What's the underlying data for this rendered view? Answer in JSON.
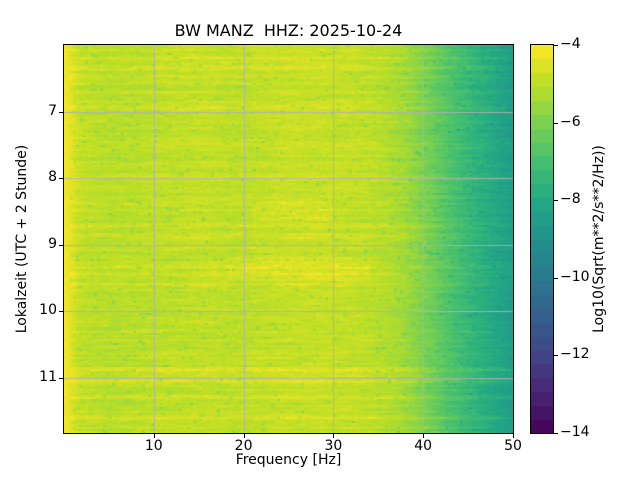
{
  "title": "BW MANZ  HHZ: 2025-10-24",
  "xlabel": "Frequency [Hz]",
  "ylabel": "Lokalzeit (UTC + 2 Stunde)",
  "colorbar_label": "Log10(Sqrt(m**2/s**2/Hz))",
  "chart_data": {
    "type": "heatmap",
    "subtype": "spectrogram",
    "title": "BW MANZ  HHZ: 2025-10-24",
    "xlabel": "Frequency [Hz]",
    "ylabel": "Lokalzeit (UTC + 2 Stunde)",
    "x_range": [
      0,
      50
    ],
    "y_range_hours": [
      6.0,
      11.833
    ],
    "x_ticks": [
      10,
      20,
      30,
      40,
      50
    ],
    "y_ticks": [
      7,
      8,
      9,
      10,
      11
    ],
    "grid": true,
    "grid_color": "#b0b0b0",
    "background": "#ffffff",
    "colorbar": {
      "label": "Log10(Sqrt(m**2/s**2/Hz))",
      "ticks": [
        -4,
        -6,
        -8,
        -10,
        -12,
        -14
      ],
      "vmin": -14,
      "vmax": -4,
      "colormap": "viridis",
      "levels": 28
    },
    "viridis_stops": [
      [
        0.0,
        "#440154"
      ],
      [
        0.1,
        "#482475"
      ],
      [
        0.2,
        "#414487"
      ],
      [
        0.3,
        "#355f8d"
      ],
      [
        0.4,
        "#2a788e"
      ],
      [
        0.5,
        "#21918c"
      ],
      [
        0.6,
        "#22a884"
      ],
      [
        0.7,
        "#44bf70"
      ],
      [
        0.8,
        "#7ad151"
      ],
      [
        0.9,
        "#bddf26"
      ],
      [
        1.0,
        "#fde725"
      ]
    ],
    "freq_profile": [
      [
        0.0,
        -4.15
      ],
      [
        0.5,
        -4.3
      ],
      [
        1.0,
        -4.6
      ],
      [
        1.8,
        -4.9
      ],
      [
        3.0,
        -5.0
      ],
      [
        5.0,
        -5.1
      ],
      [
        8.0,
        -5.05
      ],
      [
        10.0,
        -5.0
      ],
      [
        13.0,
        -4.95
      ],
      [
        16.0,
        -4.9
      ],
      [
        19.0,
        -5.0
      ],
      [
        22.0,
        -4.95
      ],
      [
        25.0,
        -4.85
      ],
      [
        28.0,
        -4.85
      ],
      [
        31.0,
        -4.9
      ],
      [
        34.0,
        -5.0
      ],
      [
        36.0,
        -5.15
      ],
      [
        38.0,
        -5.45
      ],
      [
        40.0,
        -5.95
      ],
      [
        42.0,
        -6.55
      ],
      [
        44.0,
        -7.1
      ],
      [
        46.0,
        -7.6
      ],
      [
        48.0,
        -8.05
      ],
      [
        50.0,
        -8.5
      ]
    ],
    "bright_rows": [
      [
        6.08,
        0.3
      ],
      [
        6.2,
        0.25
      ],
      [
        6.35,
        0.3
      ],
      [
        6.95,
        0.25
      ],
      [
        7.45,
        0.2
      ],
      [
        8.0,
        0.25
      ],
      [
        8.72,
        0.35
      ],
      [
        8.85,
        0.3
      ],
      [
        9.33,
        0.45
      ],
      [
        9.45,
        0.35
      ],
      [
        9.6,
        0.3
      ],
      [
        10.88,
        0.55
      ],
      [
        11.05,
        0.35
      ],
      [
        11.3,
        0.25
      ],
      [
        11.62,
        0.3
      ]
    ],
    "bright_patches": [
      {
        "t": [
          8.35,
          8.65
        ],
        "f": [
          21,
          30
        ],
        "amp": 0.3
      },
      {
        "t": [
          9.2,
          9.55
        ],
        "f": [
          18,
          34
        ],
        "amp": 0.25
      }
    ],
    "noise": {
      "row": 0.14,
      "streak": 0.2,
      "cell": 0.1
    },
    "seed": 42
  }
}
